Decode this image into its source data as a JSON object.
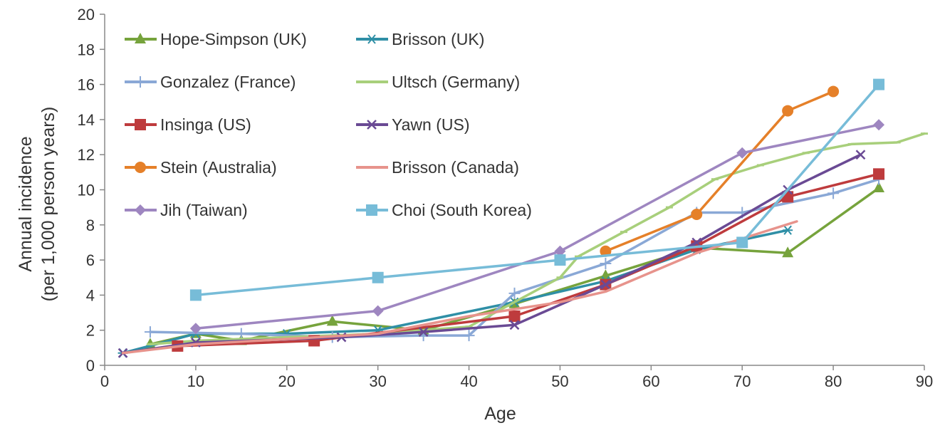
{
  "chart_data": {
    "type": "line",
    "title": "",
    "xlabel": "Age",
    "ylabel_lines": [
      "Annual incidence",
      "(per 1,000 person years)"
    ],
    "xlim": [
      0,
      90
    ],
    "ylim": [
      0,
      20
    ],
    "x_ticks": [
      0,
      10,
      20,
      30,
      40,
      50,
      60,
      70,
      80,
      90
    ],
    "y_ticks": [
      0,
      2,
      4,
      6,
      8,
      10,
      12,
      14,
      16,
      18,
      20
    ],
    "grid": false,
    "legend_position": "top-left",
    "series": [
      {
        "name": "Hope-Simpson (UK)",
        "color": "#76a33c",
        "marker": "triangle",
        "x": [
          5,
          10,
          15,
          25,
          35,
          45,
          55,
          65,
          75,
          85
        ],
        "y": [
          1.2,
          1.8,
          1.4,
          2.5,
          2.0,
          3.5,
          5.1,
          6.7,
          6.4,
          10.1
        ]
      },
      {
        "name": "Brisson (UK)",
        "color": "#2f8fa6",
        "marker": "asterisk",
        "x": [
          2,
          10,
          20,
          30,
          45,
          55,
          65,
          75
        ],
        "y": [
          0.7,
          1.8,
          1.8,
          2.0,
          3.6,
          4.8,
          6.6,
          7.7
        ]
      },
      {
        "name": "Gonzalez (France)",
        "color": "#8aa8d6",
        "marker": "plus",
        "x": [
          5,
          15,
          25,
          35,
          40,
          45,
          55,
          65,
          70,
          80,
          85
        ],
        "y": [
          1.9,
          1.8,
          1.6,
          1.7,
          1.7,
          4.1,
          5.8,
          8.7,
          8.7,
          9.8,
          10.6
        ]
      },
      {
        "name": "Ultsch (Germany)",
        "color": "#a8cf7b",
        "marker": "dash",
        "x": [
          5,
          10,
          20,
          30,
          40,
          50,
          52,
          57,
          62,
          67,
          72,
          77,
          82,
          87,
          90
        ],
        "y": [
          1.2,
          1.4,
          1.6,
          1.8,
          2.2,
          5.0,
          6.2,
          7.6,
          9.0,
          10.6,
          11.4,
          12.1,
          12.6,
          12.7,
          13.2
        ]
      },
      {
        "name": "Insinga (US)",
        "color": "#be3b3d",
        "marker": "square",
        "x": [
          8,
          23,
          45,
          55,
          65,
          75,
          85
        ],
        "y": [
          1.1,
          1.4,
          2.8,
          4.6,
          6.8,
          9.6,
          10.9
        ]
      },
      {
        "name": "Yawn (US)",
        "color": "#6a4a94",
        "marker": "x",
        "x": [
          2,
          10,
          26,
          35,
          45,
          55,
          65,
          75,
          83
        ],
        "y": [
          0.7,
          1.3,
          1.6,
          1.9,
          2.3,
          4.6,
          7.0,
          10.0,
          12.0
        ]
      },
      {
        "name": "Stein (Australia)",
        "color": "#e58029",
        "marker": "circle",
        "x": [
          55,
          65,
          75,
          80
        ],
        "y": [
          6.5,
          8.6,
          14.5,
          15.6
        ]
      },
      {
        "name": "Brisson (Canada)",
        "color": "#e7938c",
        "marker": "none",
        "x": [
          2,
          10,
          20,
          30,
          40,
          50,
          55,
          65,
          76
        ],
        "y": [
          0.7,
          1.2,
          1.5,
          1.8,
          2.8,
          3.6,
          4.2,
          6.4,
          8.2
        ]
      },
      {
        "name": "Jih (Taiwan)",
        "color": "#9e86c0",
        "marker": "diamond",
        "x": [
          10,
          30,
          50,
          70,
          85
        ],
        "y": [
          2.1,
          3.1,
          6.5,
          12.1,
          13.7
        ]
      },
      {
        "name": "Choi (South Korea)",
        "color": "#77bcd8",
        "marker": "square",
        "x": [
          10,
          30,
          50,
          70,
          85
        ],
        "y": [
          4.0,
          5.0,
          6.0,
          7.0,
          16.0
        ]
      }
    ]
  }
}
